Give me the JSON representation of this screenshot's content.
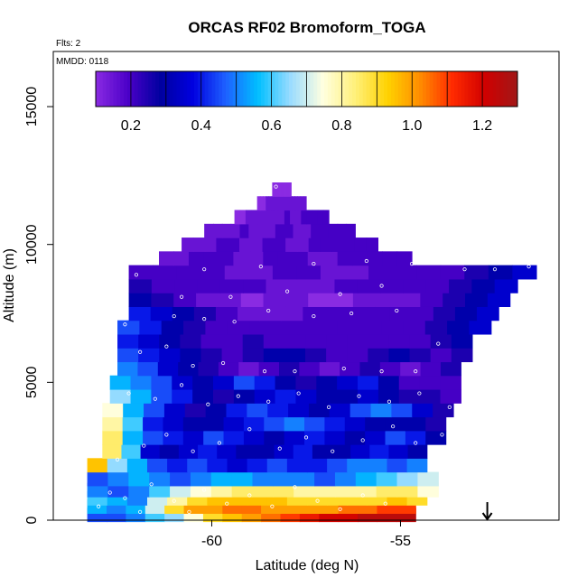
{
  "chart_data": {
    "type": "heatmap",
    "title": "ORCAS RF02 Bromoform_TOGA",
    "flights_note": "Flts: 2",
    "date_note": "MMDD: 0118",
    "xlabel": "Latitude (deg N)",
    "ylabel": "Altitude (m)",
    "xlim": [
      -64.2,
      -50.8
    ],
    "ylim": [
      0,
      17000
    ],
    "x_ticks": [
      -60,
      -55
    ],
    "x_tick_labels": [
      "-60",
      "-55"
    ],
    "y_ticks": [
      0,
      5000,
      10000,
      15000
    ],
    "y_tick_labels": [
      "0",
      "5000",
      "10000",
      "15000"
    ],
    "arrow_marker_latitude": -52.7,
    "colorbar": {
      "range": [
        0.1,
        1.3
      ],
      "ticks": [
        0.2,
        0.4,
        0.6,
        0.8,
        1.0,
        1.2
      ],
      "tick_labels": [
        "0.2",
        "0.4",
        "0.6",
        "0.8",
        "1.0",
        "1.2"
      ],
      "colors": [
        "#8A2BE2",
        "#4B00C8",
        "#0000A0",
        "#0000E0",
        "#1E60FF",
        "#00BFFF",
        "#9ADCFF",
        "#FFFFE0",
        "#FFF07A",
        "#FFD200",
        "#FF8C00",
        "#FF2A00",
        "#D00000",
        "#A01818"
      ]
    },
    "field_description": "curtain of bromoform mixing ratio (ppt) vs latitude and altitude",
    "rows": [
      {
        "alt": 200,
        "lat": [
          -63.3,
          -54.6
        ],
        "values": [
          0.45,
          0.45,
          0.5,
          0.6,
          0.65,
          0.75,
          0.9,
          0.95,
          1.0,
          1.05,
          1.1,
          1.15,
          1.2,
          1.2,
          1.25,
          1.25,
          1.25
        ]
      },
      {
        "alt": 500,
        "lat": [
          -63.3,
          -54.6
        ],
        "values": [
          0.55,
          0.5,
          0.55,
          0.7,
          0.9,
          1.0,
          1.0,
          1.05,
          1.05,
          1.0,
          1.0,
          1.0,
          1.0,
          1.05,
          1.05,
          1.1,
          1.1
        ]
      },
      {
        "alt": 800,
        "lat": [
          -63.3,
          -54.3
        ],
        "values": [
          0.6,
          0.55,
          0.5,
          0.7,
          0.8,
          0.9,
          0.95,
          0.95,
          0.95,
          0.95,
          0.9,
          0.9,
          0.9,
          0.9,
          0.9,
          0.95,
          0.9
        ]
      },
      {
        "alt": 1100,
        "lat": [
          -63.3,
          -54.0
        ],
        "values": [
          0.5,
          0.45,
          0.5,
          0.6,
          0.7,
          0.75,
          0.8,
          0.85,
          0.85,
          0.85,
          0.8,
          0.8,
          0.8,
          0.8,
          0.85,
          0.85,
          0.75
        ]
      },
      {
        "alt": 1500,
        "lat": [
          -63.3,
          -54.0
        ],
        "values": [
          0.45,
          0.5,
          0.55,
          0.5,
          0.45,
          0.5,
          0.55,
          0.55,
          0.5,
          0.5,
          0.5,
          0.45,
          0.5,
          0.55,
          0.6,
          0.65,
          0.7
        ]
      },
      {
        "alt": 2000,
        "lat": [
          -63.3,
          -54.3
        ],
        "values": [
          0.95,
          0.65,
          0.55,
          0.45,
          0.4,
          0.45,
          0.4,
          0.35,
          0.4,
          0.45,
          0.4,
          0.4,
          0.45,
          0.5,
          0.5,
          0.45,
          0.5
        ]
      },
      {
        "alt": 2500,
        "lat": [
          -62.9,
          -54.3
        ],
        "values": [
          0.85,
          0.6,
          0.35,
          0.3,
          0.35,
          0.4,
          0.35,
          0.3,
          0.3,
          0.35,
          0.4,
          0.3,
          0.3,
          0.35,
          0.4,
          0.35,
          0.3
        ]
      },
      {
        "alt": 3000,
        "lat": [
          -62.9,
          -53.8
        ],
        "values": [
          0.85,
          0.55,
          0.45,
          0.4,
          0.35,
          0.45,
          0.4,
          0.35,
          0.3,
          0.35,
          0.4,
          0.35,
          0.3,
          0.35,
          0.45,
          0.4,
          0.3
        ]
      },
      {
        "alt": 3500,
        "lat": [
          -62.9,
          -53.8
        ],
        "values": [
          0.8,
          0.6,
          0.4,
          0.35,
          0.3,
          0.3,
          0.35,
          0.4,
          0.45,
          0.5,
          0.45,
          0.4,
          0.35,
          0.3,
          0.3,
          0.3,
          0.25
        ]
      },
      {
        "alt": 4000,
        "lat": [
          -62.9,
          -53.6
        ],
        "values": [
          0.75,
          0.55,
          0.45,
          0.35,
          0.25,
          0.3,
          0.4,
          0.45,
          0.4,
          0.35,
          0.3,
          0.35,
          0.45,
          0.5,
          0.45,
          0.35,
          0.25
        ]
      },
      {
        "alt": 4500,
        "lat": [
          -62.7,
          -53.4
        ],
        "values": [
          0.65,
          0.55,
          0.45,
          0.4,
          0.3,
          0.25,
          0.3,
          0.35,
          0.4,
          0.35,
          0.3,
          0.3,
          0.35,
          0.3,
          0.25,
          0.25,
          0.2
        ]
      },
      {
        "alt": 5000,
        "lat": [
          -62.7,
          -53.4
        ],
        "values": [
          0.55,
          0.5,
          0.45,
          0.35,
          0.3,
          0.35,
          0.45,
          0.4,
          0.3,
          0.25,
          0.3,
          0.35,
          0.4,
          0.3,
          0.2,
          0.2,
          0.2
        ]
      },
      {
        "alt": 5500,
        "lat": [
          -62.5,
          -53.4
        ],
        "values": [
          0.5,
          0.45,
          0.35,
          0.3,
          0.25,
          0.2,
          0.15,
          0.2,
          0.25,
          0.2,
          0.15,
          0.2,
          0.25,
          0.2,
          0.15,
          0.2,
          0.25
        ]
      },
      {
        "alt": 6000,
        "lat": [
          -62.5,
          -53.1
        ],
        "values": [
          0.45,
          0.4,
          0.35,
          0.3,
          0.25,
          0.2,
          0.25,
          0.3,
          0.3,
          0.25,
          0.2,
          0.2,
          0.25,
          0.3,
          0.25,
          0.2,
          0.25
        ]
      },
      {
        "alt": 6500,
        "lat": [
          -62.5,
          -53.1
        ],
        "values": [
          0.4,
          0.35,
          0.3,
          0.25,
          0.2,
          0.2,
          0.25,
          0.2,
          0.2,
          0.2,
          0.2,
          0.2,
          0.2,
          0.2,
          0.2,
          0.25,
          0.3
        ]
      },
      {
        "alt": 7000,
        "lat": [
          -62.5,
          -52.6
        ],
        "values": [
          0.45,
          0.4,
          0.3,
          0.25,
          0.2,
          0.2,
          0.2,
          0.2,
          0.2,
          0.2,
          0.2,
          0.2,
          0.2,
          0.2,
          0.25,
          0.3,
          0.35
        ]
      },
      {
        "alt": 7500,
        "lat": [
          -62.2,
          -52.4
        ],
        "values": [
          0.4,
          0.35,
          0.3,
          0.25,
          0.2,
          0.15,
          0.15,
          0.15,
          0.2,
          0.2,
          0.2,
          0.2,
          0.2,
          0.2,
          0.25,
          0.3,
          0.35
        ]
      },
      {
        "alt": 8000,
        "lat": [
          -62.2,
          -52.1
        ],
        "values": [
          0.3,
          0.25,
          0.2,
          0.15,
          0.15,
          0.1,
          0.15,
          0.15,
          0.1,
          0.1,
          0.15,
          0.15,
          0.15,
          0.2,
          0.25,
          0.3,
          0.35
        ]
      },
      {
        "alt": 8500,
        "lat": [
          -62.2,
          -51.9
        ],
        "values": [
          0.25,
          0.2,
          0.2,
          0.2,
          0.2,
          0.2,
          0.15,
          0.15,
          0.15,
          0.2,
          0.2,
          0.2,
          0.2,
          0.2,
          0.25,
          0.3,
          0.35
        ]
      },
      {
        "alt": 9000,
        "lat": [
          -62.2,
          -51.4
        ],
        "values": [
          0.2,
          0.2,
          0.2,
          0.2,
          0.15,
          0.15,
          0.2,
          0.2,
          0.15,
          0.15,
          0.2,
          0.2,
          0.2,
          0.2,
          0.25,
          0.3,
          0.35
        ]
      },
      {
        "alt": 9500,
        "lat": [
          -61.4,
          -54.7
        ],
        "values": [
          0.15,
          0.15,
          0.2,
          0.2,
          0.2,
          0.15,
          0.15,
          0.2,
          0.2,
          0.2,
          0.15,
          0.15,
          0.2,
          0.2,
          0.2,
          0.2,
          0.2
        ]
      },
      {
        "alt": 10000,
        "lat": [
          -60.8,
          -55.6
        ],
        "values": [
          0.15,
          0.15,
          0.15,
          0.2,
          0.2,
          0.15,
          0.15,
          0.2,
          0.2,
          0.15,
          0.15,
          0.2,
          0.2,
          0.2,
          0.2,
          0.2,
          0.2
        ]
      },
      {
        "alt": 10500,
        "lat": [
          -60.2,
          -56.2
        ],
        "values": [
          0.15,
          0.15,
          0.15,
          0.15,
          0.2,
          0.15,
          0.15,
          0.15,
          0.2,
          0.2,
          0.15,
          0.15,
          0.2,
          0.2,
          0.2,
          0.2,
          0.2
        ]
      },
      {
        "alt": 11000,
        "lat": [
          -59.4,
          -56.9
        ],
        "values": [
          0.1,
          0.1,
          0.15,
          0.15,
          0.15,
          0.15,
          0.15,
          0.15,
          0.15,
          0.2,
          0.15,
          0.15,
          0.2,
          0.2,
          0.2,
          0.2,
          0.2
        ]
      },
      {
        "alt": 11500,
        "lat": [
          -58.8,
          -57.5
        ],
        "values": [
          0.1,
          0.1,
          0.1,
          0.15,
          0.15,
          0.15,
          0.15,
          0.15,
          0.15,
          0.15,
          0.15,
          0.15,
          0.15,
          0.15,
          0.15,
          0.15,
          0.15
        ]
      },
      {
        "alt": 12000,
        "lat": [
          -58.4,
          -57.9
        ],
        "values": [
          0.1,
          0.1,
          0.1,
          0.1,
          0.1,
          0.1,
          0.1,
          0.1,
          0.1,
          0.1,
          0.1,
          0.1,
          0.1,
          0.1,
          0.1,
          0.1,
          0.1
        ]
      }
    ],
    "sample_points": [
      [
        -63.0,
        500
      ],
      [
        -62.7,
        1000
      ],
      [
        -62.3,
        800
      ],
      [
        -61.9,
        300
      ],
      [
        -61.6,
        1300
      ],
      [
        -61.0,
        700
      ],
      [
        -60.6,
        300
      ],
      [
        -60.2,
        1100
      ],
      [
        -59.6,
        600
      ],
      [
        -59.0,
        900
      ],
      [
        -58.4,
        500
      ],
      [
        -57.8,
        1200
      ],
      [
        -57.2,
        700
      ],
      [
        -56.6,
        400
      ],
      [
        -56.0,
        900
      ],
      [
        -55.4,
        600
      ],
      [
        -62.5,
        2200
      ],
      [
        -61.8,
        2700
      ],
      [
        -61.2,
        3100
      ],
      [
        -60.5,
        2500
      ],
      [
        -59.8,
        2800
      ],
      [
        -59.0,
        3300
      ],
      [
        -58.2,
        2600
      ],
      [
        -57.5,
        3000
      ],
      [
        -56.8,
        2500
      ],
      [
        -56.0,
        2900
      ],
      [
        -55.2,
        3400
      ],
      [
        -54.6,
        2800
      ],
      [
        -53.9,
        3100
      ],
      [
        -53.4,
        2900
      ],
      [
        -62.2,
        4600
      ],
      [
        -61.5,
        4400
      ],
      [
        -60.8,
        4900
      ],
      [
        -60.1,
        4200
      ],
      [
        -59.3,
        4500
      ],
      [
        -58.5,
        4300
      ],
      [
        -57.7,
        4600
      ],
      [
        -56.9,
        4100
      ],
      [
        -56.1,
        4500
      ],
      [
        -55.3,
        4300
      ],
      [
        -54.5,
        4600
      ],
      [
        -53.7,
        4100
      ],
      [
        -53.0,
        5600
      ],
      [
        -61.9,
        6100
      ],
      [
        -61.2,
        6300
      ],
      [
        -60.5,
        5600
      ],
      [
        -59.7,
        5700
      ],
      [
        -58.6,
        5400
      ],
      [
        -57.8,
        5400
      ],
      [
        -56.5,
        5500
      ],
      [
        -55.5,
        5400
      ],
      [
        -54.6,
        5400
      ],
      [
        -54.0,
        6400
      ],
      [
        -62.3,
        7100
      ],
      [
        -61.0,
        7400
      ],
      [
        -60.2,
        7300
      ],
      [
        -59.4,
        7200
      ],
      [
        -58.5,
        7600
      ],
      [
        -57.3,
        7400
      ],
      [
        -56.3,
        7500
      ],
      [
        -55.1,
        7600
      ],
      [
        -62.0,
        8900
      ],
      [
        -60.8,
        8100
      ],
      [
        -59.5,
        8100
      ],
      [
        -58.0,
        8300
      ],
      [
        -56.6,
        8200
      ],
      [
        -55.5,
        8500
      ],
      [
        -60.2,
        9100
      ],
      [
        -58.7,
        9200
      ],
      [
        -57.3,
        9300
      ],
      [
        -55.9,
        9400
      ],
      [
        -54.7,
        9300
      ],
      [
        -53.3,
        9100
      ],
      [
        -52.5,
        9100
      ],
      [
        -51.6,
        9200
      ],
      [
        -55.4,
        9900
      ],
      [
        -58.3,
        12100
      ]
    ]
  }
}
